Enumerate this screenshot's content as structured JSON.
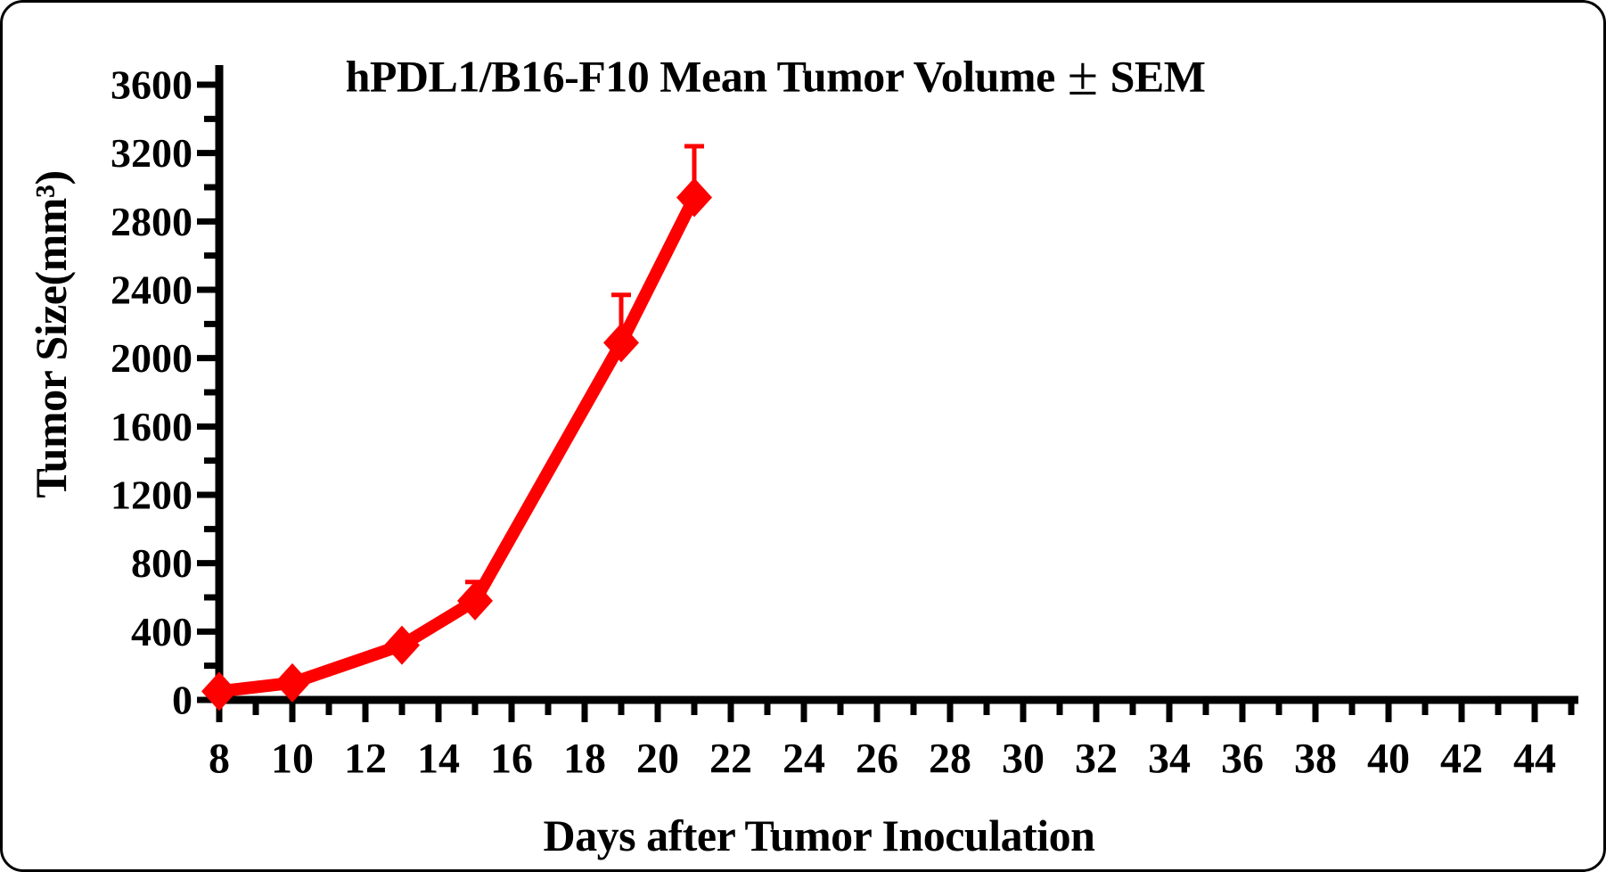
{
  "chart_data": {
    "type": "line",
    "title": "hPDL1/B16-F10 Mean Tumor Volume ± SEM",
    "xlabel": "Days after Tumor Inoculation",
    "ylabel": "Tumor Size(mm³)",
    "grid": false,
    "legend": "none",
    "background": "#ffffff",
    "axis_color": "#000000",
    "text_color": "#000000",
    "xlim": [
      8,
      45.8
    ],
    "ylim": [
      0,
      3700
    ],
    "x_ticks_major": [
      8,
      10,
      12,
      14,
      16,
      18,
      20,
      22,
      24,
      26,
      28,
      30,
      32,
      34,
      36,
      38,
      40,
      42,
      44
    ],
    "x_ticks_minor": [
      9,
      11,
      13,
      15,
      17,
      19,
      21,
      23,
      25,
      27,
      29,
      31,
      33,
      35,
      37,
      39,
      41,
      43,
      45
    ],
    "y_ticks_major": [
      0,
      400,
      800,
      1200,
      1600,
      2000,
      2400,
      2800,
      3200,
      3600
    ],
    "y_ticks_minor": [
      200,
      600,
      1000,
      1400,
      1800,
      2200,
      2600,
      3000,
      3400
    ],
    "error_bars": "upper SEM whiskers only",
    "series": [
      {
        "name": "hPDL1/B16-F10 mean tumor volume",
        "color": "#ff0000",
        "marker": "diamond",
        "points": [
          {
            "x": 8,
            "y": 50,
            "sem": 0
          },
          {
            "x": 10,
            "y": 100,
            "sem": 0
          },
          {
            "x": 13,
            "y": 320,
            "sem": 0
          },
          {
            "x": 15,
            "y": 580,
            "sem": 110
          },
          {
            "x": 19,
            "y": 2090,
            "sem": 280
          },
          {
            "x": 21,
            "y": 2940,
            "sem": 300
          }
        ]
      }
    ]
  }
}
